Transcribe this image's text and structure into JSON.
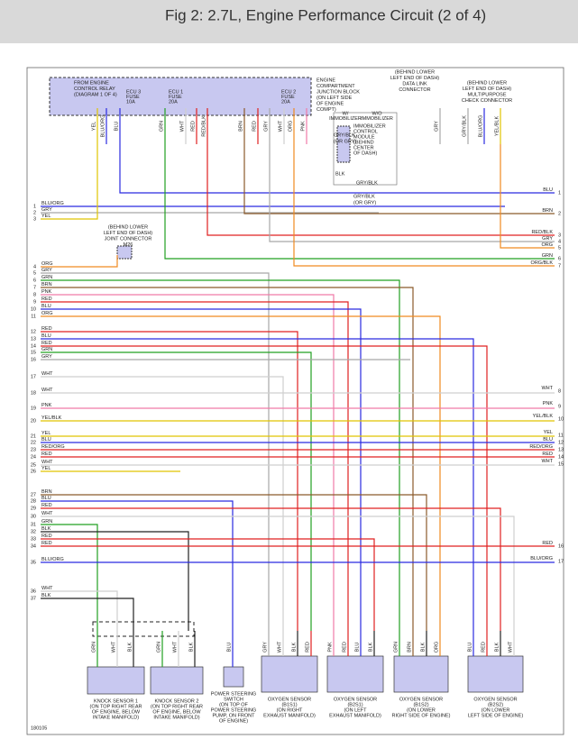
{
  "header": {
    "title": "Fig 2: 2.7L, Engine Performance Circuit (2 of 4)"
  },
  "junction_block": {
    "label": [
      "ENGINE",
      "COMPARTMENT",
      "JUNCTION BLOCK",
      "(ON LEFT SIDE",
      "OF ENGINE",
      "COMPT)"
    ],
    "relay": [
      "FROM ENGINE",
      "CONTROL RELAY",
      "(DIAGRAM 1 OF 4)"
    ],
    "fuses": [
      [
        "ECU 3",
        "FUSE",
        "10A"
      ],
      [
        "ECU 1",
        "FUSE",
        "20A"
      ],
      [
        "ECU 2",
        "FUSE",
        "20A"
      ]
    ]
  },
  "data_link": {
    "label": [
      "(BEHIND LOWER",
      "LEFT END OF DASH)",
      "DATA LINK",
      "CONNECTOR"
    ],
    "wi": [
      "W/",
      "IMMOBILIZER"
    ],
    "wo": [
      "W/O",
      "IMMOBILIZER"
    ]
  },
  "check_connector": {
    "label": [
      "(BEHIND LOWER",
      "LEFT END OF DASH)",
      "MULTIPURPOSE",
      "CHECK CONNECTOR"
    ]
  },
  "immobilizer": {
    "label": [
      "IMMOBILIZER",
      "CONTROL",
      "MODULE",
      "(BEHIND",
      "CENTER",
      "OF DASH)"
    ]
  },
  "joint": {
    "label": [
      "(BEHIND LOWER",
      "LEFT END OF DASH)",
      "JOINT CONNECTOR",
      "M26"
    ]
  },
  "mid_labels": [
    "GRY/BLK",
    "(OR GRY)",
    "GRY/BLK",
    "BLK"
  ],
  "top_wires": [
    "YEL",
    "BLU/ORG",
    "BLU",
    "GRN",
    "WHT",
    "RED",
    "RED/BLK",
    "BRN",
    "RED",
    "GRY",
    "WHT",
    "ORG",
    "PNK",
    "GRY",
    "GRY/BLK",
    "BLU/ORG",
    "YEL/BLK"
  ],
  "left_wires": [
    {
      "num": 1,
      "color": "BLU/ORG"
    },
    {
      "num": 2,
      "color": "GRY"
    },
    {
      "num": 3,
      "color": "YEL"
    },
    {
      "num": 4,
      "color": "ORG"
    },
    {
      "num": 5,
      "color": "GRY"
    },
    {
      "num": 6,
      "color": "GRN"
    },
    {
      "num": 7,
      "color": "BRN"
    },
    {
      "num": 8,
      "color": "PNK"
    },
    {
      "num": 9,
      "color": "RED"
    },
    {
      "num": 10,
      "color": "BLU"
    },
    {
      "num": 11,
      "color": "ORG"
    },
    {
      "num": 12,
      "color": "RED"
    },
    {
      "num": 13,
      "color": "BLU"
    },
    {
      "num": 14,
      "color": "RED"
    },
    {
      "num": 15,
      "color": "GRN"
    },
    {
      "num": 16,
      "color": "GRY"
    },
    {
      "num": 17,
      "color": "WHT"
    },
    {
      "num": 18,
      "color": "WHT"
    },
    {
      "num": 19,
      "color": "PNK"
    },
    {
      "num": 20,
      "color": "YEL/BLK"
    },
    {
      "num": 21,
      "color": "YEL"
    },
    {
      "num": 22,
      "color": "BLU"
    },
    {
      "num": 23,
      "color": "RED/ORG"
    },
    {
      "num": 24,
      "color": "RED"
    },
    {
      "num": 25,
      "color": "WHT"
    },
    {
      "num": 26,
      "color": "YEL"
    },
    {
      "num": 27,
      "color": "BRN"
    },
    {
      "num": 28,
      "color": "BLU"
    },
    {
      "num": 29,
      "color": "RED"
    },
    {
      "num": 30,
      "color": "WHT"
    },
    {
      "num": 31,
      "color": "GRN"
    },
    {
      "num": 32,
      "color": "BLK"
    },
    {
      "num": 33,
      "color": "RED"
    },
    {
      "num": 34,
      "color": "RED"
    },
    {
      "num": 35,
      "color": "BLU/ORG"
    },
    {
      "num": 36,
      "color": "WHT"
    },
    {
      "num": 37,
      "color": "BLK"
    }
  ],
  "right_wires": [
    {
      "num": 1,
      "color": "BLU"
    },
    {
      "num": 2,
      "color": "BRN"
    },
    {
      "num": 3,
      "color": "RED/BLK"
    },
    {
      "num": 4,
      "color": "GRY"
    },
    {
      "num": 5,
      "color": "ORG"
    },
    {
      "num": 6,
      "color": "GRN"
    },
    {
      "num": 7,
      "color": "ORG/BLK"
    },
    {
      "num": 8,
      "color": "WHT"
    },
    {
      "num": 9,
      "color": "PNK"
    },
    {
      "num": 10,
      "color": "YEL/BLK"
    },
    {
      "num": 11,
      "color": "YEL"
    },
    {
      "num": 12,
      "color": "BLU"
    },
    {
      "num": 13,
      "color": "RED/ORG"
    },
    {
      "num": 14,
      "color": "RED"
    },
    {
      "num": 15,
      "color": "WHT"
    },
    {
      "num": 16,
      "color": "RED"
    },
    {
      "num": 17,
      "color": "BLU/ORG"
    }
  ],
  "components": [
    {
      "label": [
        "KNOCK SENSOR 1",
        "(ON TOP RIGHT REAR",
        "OF ENGINE, BELOW",
        "INTAKE MANIFOLD)"
      ],
      "pins": [
        "GRN",
        "WHT",
        "BLK"
      ]
    },
    {
      "label": [
        "KNOCK SENSOR 2",
        "(ON TOP RIGHT REAR",
        "OF ENGINE, BELOW",
        "INTAKE MANIFOLD)"
      ],
      "pins": [
        "GRN",
        "WHT",
        "BLK"
      ]
    },
    {
      "label": [
        "POWER STEERING",
        "SWITCH",
        "(ON TOP OF",
        "POWER STEERING",
        "PUMP, ON FRONT",
        "OF ENGINE)"
      ],
      "pins": [
        "BLU"
      ]
    },
    {
      "label": [
        "OXYGEN SENSOR",
        "(B1S1)",
        "(ON RIGHT",
        "EXHAUST MANIFOLD)"
      ],
      "pins": [
        "GRY",
        "WHT",
        "BLK",
        "RED"
      ]
    },
    {
      "label": [
        "OXYGEN SENSOR",
        "(B2S1)",
        "(ON LEFT",
        "EXHAUST MANIFOLD)"
      ],
      "pins": [
        "PNK",
        "RED",
        "BLU",
        "BLK"
      ]
    },
    {
      "label": [
        "OXYGEN SENSOR",
        "(B1S2)",
        "(ON LOWER",
        "RIGHT SIDE OF ENGINE)"
      ],
      "pins": [
        "GRN",
        "BRN",
        "BLK",
        "ORG"
      ]
    },
    {
      "label": [
        "OXYGEN SENSOR",
        "(B2S2)",
        "(ON LOWER",
        "LEFT SIDE OF ENGINE)"
      ],
      "pins": [
        "BLU",
        "RED",
        "BLK",
        "WHT"
      ]
    }
  ],
  "footer": {
    "code": "180105"
  }
}
